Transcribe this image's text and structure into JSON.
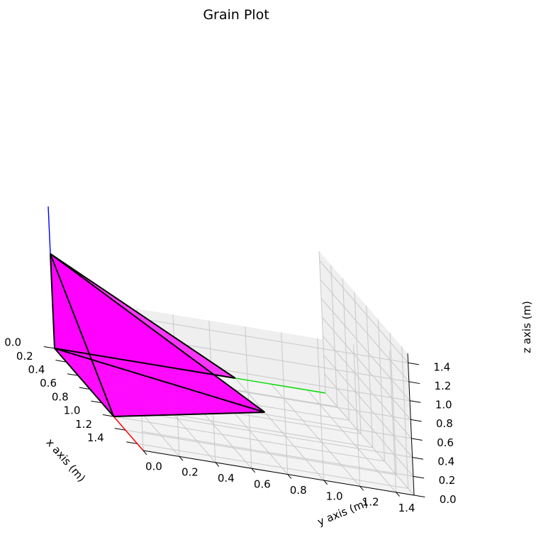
{
  "chart_data": {
    "type": "3d-polyhedron",
    "title": "Grain Plot",
    "xlabel": "x axis (m)",
    "ylabel": "y axis (m)",
    "zlabel": "z axis (m)",
    "xlim": [
      0.0,
      1.5
    ],
    "ylim": [
      0.0,
      1.5
    ],
    "zlim": [
      0.0,
      1.5
    ],
    "x_ticks": [
      "0.0",
      "0.2",
      "0.4",
      "0.6",
      "0.8",
      "1.0",
      "1.2",
      "1.4"
    ],
    "y_ticks": [
      "0.0",
      "0.2",
      "0.4",
      "0.6",
      "0.8",
      "1.0",
      "1.2",
      "1.4"
    ],
    "z_ticks": [
      "0.0",
      "0.2",
      "0.4",
      "0.6",
      "0.8",
      "1.0",
      "1.2",
      "1.4"
    ],
    "grid": true,
    "vertices": [
      {
        "id": "O",
        "x": 0.0,
        "y": 0.0,
        "z": 0.0
      },
      {
        "id": "A",
        "x": 1.0,
        "y": 0.0,
        "z": 0.0
      },
      {
        "id": "B",
        "x": 0.0,
        "y": 1.0,
        "z": 0.0
      },
      {
        "id": "C",
        "x": 0.0,
        "y": 0.0,
        "z": 1.0
      },
      {
        "id": "D",
        "x": 0.5,
        "y": 1.0,
        "z": 0.0
      }
    ],
    "faces": [
      [
        "O",
        "A",
        "C"
      ],
      [
        "O",
        "B",
        "C"
      ],
      [
        "A",
        "D",
        "C"
      ],
      [
        "O",
        "A",
        "D"
      ],
      [
        "O",
        "D",
        "C"
      ]
    ],
    "edges": [
      [
        "O",
        "A"
      ],
      [
        "O",
        "B"
      ],
      [
        "O",
        "C"
      ],
      [
        "B",
        "C"
      ],
      [
        "A",
        "D"
      ],
      [
        "D",
        "C"
      ],
      [
        "O",
        "D"
      ],
      [
        "A",
        "C"
      ]
    ],
    "face_color": "#ff00ff",
    "edge_color": "#000000",
    "reference_axes": [
      {
        "axis": "x",
        "color": "#ff0000",
        "length": 1.5
      },
      {
        "axis": "y",
        "color": "#00dd00",
        "length": 1.5
      },
      {
        "axis": "z",
        "color": "#0000ff",
        "length": 1.5
      }
    ]
  }
}
